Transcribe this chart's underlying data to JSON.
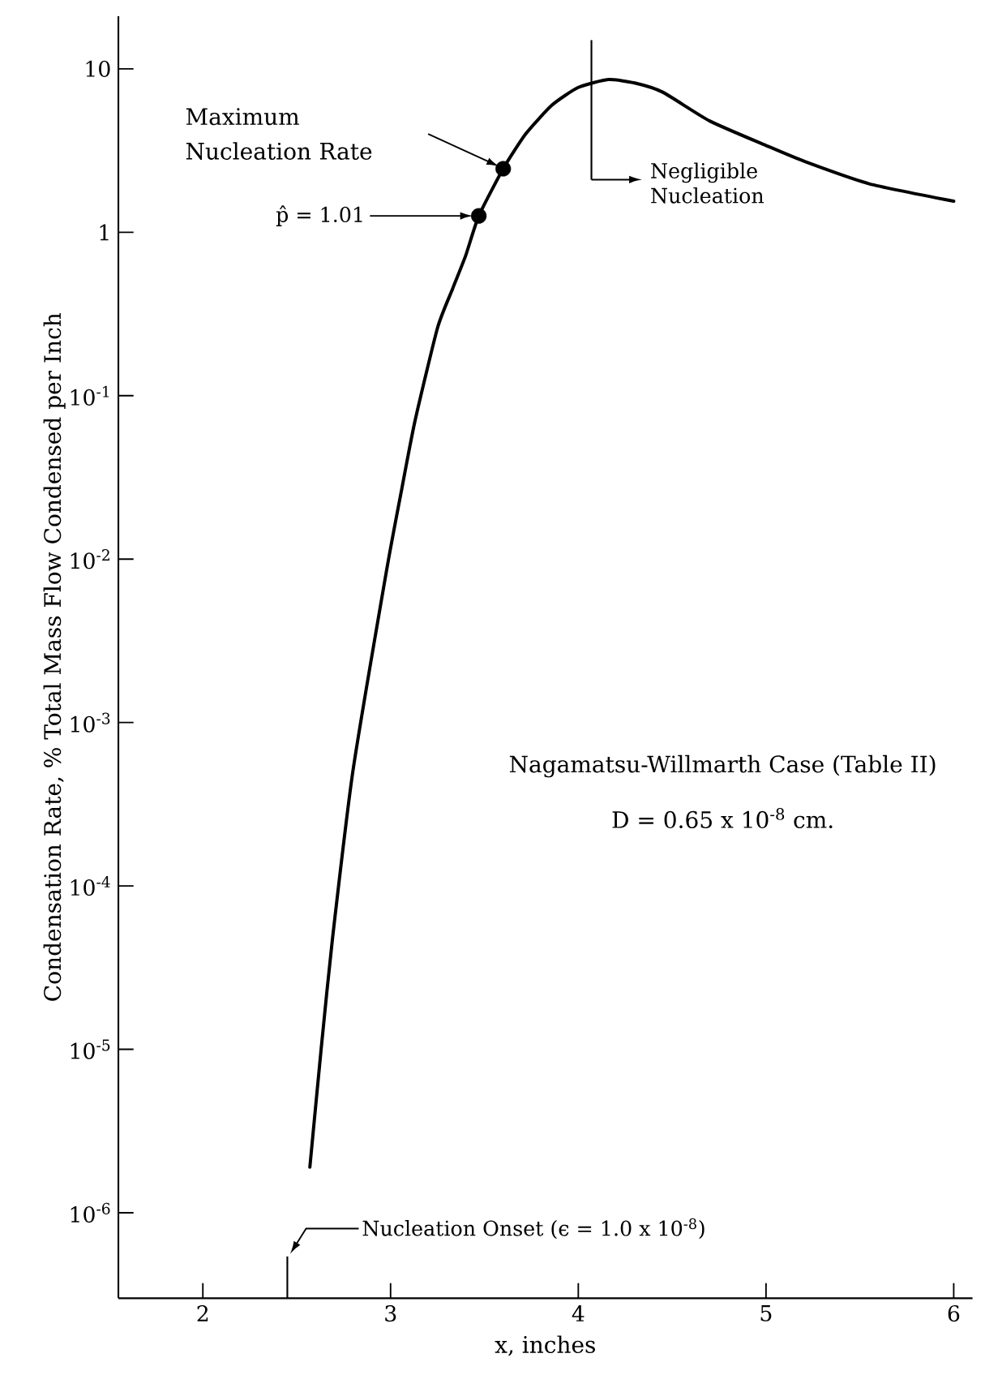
{
  "chart_data": {
    "type": "line",
    "xlabel": "x, inches",
    "ylabel": "Condensation Rate,  % Total Mass Flow Condensed per Inch",
    "log": "y",
    "xlim": [
      1.55,
      6.1
    ],
    "ylim": [
      3e-07,
      21
    ],
    "xticks": [
      2,
      3,
      4,
      5,
      6
    ],
    "yticks": [
      {
        "value": 10,
        "label": "10"
      },
      {
        "value": 1,
        "label": "1"
      },
      {
        "value": 0.1,
        "label": "10$^{-1}$"
      },
      {
        "value": 0.01,
        "label": "10$^{-2}$"
      },
      {
        "value": 0.001,
        "label": "10$^{-3}$"
      },
      {
        "value": 0.0001,
        "label": "10$^{-4}$"
      },
      {
        "value": 1e-05,
        "label": "10$^{-5}$"
      },
      {
        "value": 1e-06,
        "label": "10$^{-6}$"
      }
    ],
    "series": [
      {
        "type": "line",
        "color": "#000000",
        "line_style": "solid",
        "marker": "none",
        "x": [
          2.57,
          2.63,
          2.69,
          2.8,
          2.98,
          3.06,
          3.13,
          3.25,
          3.33,
          3.4,
          3.47,
          3.6,
          3.72,
          3.86,
          4.0,
          4.16,
          4.3,
          4.45,
          4.7,
          5.0,
          5.21,
          5.55,
          6.0
        ],
        "values": [
          1.9e-06,
          1e-05,
          4.7e-05,
          0.00051,
          0.0087,
          0.027,
          0.07,
          0.26,
          0.45,
          0.72,
          1.26,
          2.45,
          4.0,
          6.0,
          7.7,
          8.6,
          8.2,
          7.2,
          4.8,
          3.4,
          2.7,
          1.98,
          1.55
        ]
      },
      {
        "type": "scatter",
        "color": "#000000",
        "marker": "circle",
        "x": [
          3.47,
          3.6
        ],
        "values": [
          1.26,
          2.45
        ]
      }
    ],
    "ref_lines": [
      {
        "axis": "x",
        "value": 4.07,
        "label": "Negligible Nucleation"
      }
    ],
    "annotations": [
      "Maximum Nucleation Rate",
      "p̂ = 1.01",
      "Nucleation Onset (ϵ = 1.0 x 10$^{-8}$)",
      "Nagamatsu-Willmarth Case (Table II)",
      "D = 0.65 x 10$^{-8}$ cm."
    ]
  }
}
